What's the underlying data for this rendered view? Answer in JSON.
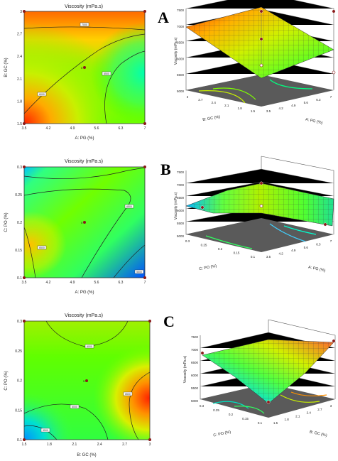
{
  "chart_data": [
    {
      "type": "contour",
      "panel": "A",
      "title": "Viscosity (mPa.s)",
      "xlabel": "A: PG (%)",
      "ylabel": "B: GC (%)",
      "xticks": [
        "3.5",
        "4.2",
        "4.9",
        "5.6",
        "6.3",
        "7"
      ],
      "yticks": [
        "1.5",
        "1.8",
        "2.1",
        "2.4",
        "2.7",
        "3"
      ],
      "xlim": [
        3.5,
        7
      ],
      "ylim": [
        1.5,
        3
      ],
      "contour_labels": [
        "7000",
        "6500",
        "6000",
        "6000"
      ],
      "center_label": "5"
    },
    {
      "type": "surface",
      "panel": "A",
      "zlabel": "Viscosity (mPa.s)",
      "xlabel": "A: PG (%)",
      "ylabel": "B: GC (%)",
      "zticks": [
        "5000",
        "5500",
        "6000",
        "6500",
        "7000",
        "7500"
      ],
      "xticks": [
        "3.5",
        "4.2",
        "4.9",
        "5.6",
        "6.3",
        "7"
      ],
      "yticks": [
        "1.5",
        "1.8",
        "2.1",
        "2.4",
        "2.7",
        "3"
      ]
    },
    {
      "type": "contour",
      "panel": "B",
      "title": "Viscosity (mPa.s)",
      "xlabel": "A: PG (%)",
      "ylabel": "C: PO (%)",
      "xticks": [
        "3.5",
        "4.2",
        "4.9",
        "5.6",
        "6.3",
        "7"
      ],
      "yticks": [
        "0.1",
        "0.15",
        "0.2",
        "0.25",
        "0.3"
      ],
      "xlim": [
        3.5,
        7
      ],
      "ylim": [
        0.1,
        0.3
      ],
      "contour_labels": [
        "6500",
        "6500",
        "6000",
        "5500"
      ],
      "center_label": "5"
    },
    {
      "type": "surface",
      "panel": "B",
      "zlabel": "Viscosity (mPa.s)",
      "xlabel": "A: PG (%)",
      "ylabel": "C: PO (%)",
      "zticks": [
        "5000",
        "5500",
        "6000",
        "6500",
        "7000",
        "7500"
      ],
      "xticks": [
        "3.5",
        "4.2",
        "4.9",
        "5.6",
        "6.3",
        "7"
      ],
      "yticks": [
        "0.1",
        "0.15",
        "0.2",
        "0.25",
        "0.3"
      ]
    },
    {
      "type": "contour",
      "panel": "C",
      "title": "Viscosity (mPa.s)",
      "xlabel": "B: GC (%)",
      "ylabel": "C: PO (%)",
      "xticks": [
        "1.5",
        "1.8",
        "2.1",
        "2.4",
        "2.7",
        "3"
      ],
      "yticks": [
        "0.1",
        "0.15",
        "0.2",
        "0.25",
        "0.3"
      ],
      "xlim": [
        1.5,
        3
      ],
      "ylim": [
        0.1,
        0.3
      ],
      "contour_labels": [
        "6000",
        "6500",
        "6000",
        "5500"
      ],
      "center_label": "5"
    },
    {
      "type": "surface",
      "panel": "C",
      "zlabel": "Viscosity (mPa.s)",
      "xlabel": "B: GC (%)",
      "ylabel": "C: PO (%)",
      "zticks": [
        "5000",
        "5500",
        "6000",
        "6500",
        "7000",
        "7500"
      ],
      "xticks": [
        "1.5",
        "1.8",
        "2.1",
        "2.4",
        "2.7",
        "3"
      ],
      "yticks": [
        "0.1",
        "0.15",
        "0.2",
        "0.25",
        "0.3"
      ]
    }
  ],
  "colors": {
    "high": "#ff2a00",
    "mid": "#22ff00",
    "low": "#0066ff",
    "floor": "#5a5a5a",
    "marker": "#8b1a1a"
  }
}
